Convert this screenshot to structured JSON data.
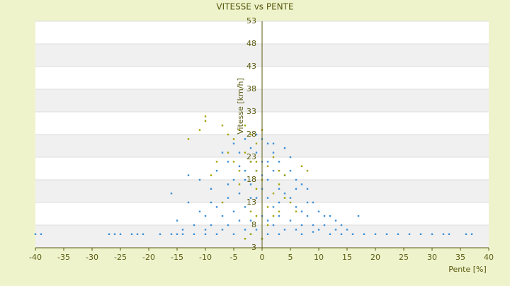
{
  "chart_data": {
    "type": "scatter",
    "title": "VITESSE vs PENTE",
    "x_label": "Pente [%]",
    "y_label": "Vitesse [km/h]",
    "xlim": [
      -40,
      40
    ],
    "xticks": [
      -40,
      -35,
      -30,
      -25,
      -20,
      -15,
      -10,
      -5,
      0,
      5,
      10,
      15,
      20,
      25,
      30,
      35,
      40
    ],
    "ylim": [
      3,
      53
    ],
    "yticks": [
      3,
      8,
      13,
      18,
      23,
      28,
      33,
      38,
      43,
      48,
      53
    ],
    "grid": true,
    "band_color": "#f0f0f0",
    "axis_color": "#5a5a10",
    "background": "#eef3cc",
    "series": [
      {
        "color": "#3b8fd6",
        "x": [
          -40,
          -39,
          -27,
          -26,
          -25,
          -23,
          -22,
          -21,
          -18,
          -16,
          -15,
          -14,
          -12,
          -10,
          -8,
          12,
          14,
          16,
          18,
          20,
          22,
          24,
          26,
          28,
          30,
          32,
          33,
          36,
          37,
          -16,
          -13,
          -11,
          -9,
          -8,
          -7,
          -6,
          -5,
          -4,
          -3,
          -2,
          -1,
          0,
          1,
          2,
          3,
          4,
          5,
          6,
          7,
          8,
          9,
          10,
          12,
          13,
          17,
          -5,
          -3,
          -2,
          -1,
          1,
          2,
          3,
          4,
          5,
          6,
          7,
          8,
          -8,
          -6,
          -4,
          -2,
          0,
          1,
          -10,
          -7,
          -5,
          -3,
          -1,
          0,
          2,
          3,
          5,
          7,
          9,
          11,
          -12,
          -9,
          -6,
          -4,
          -2,
          0,
          1,
          2,
          4,
          6,
          -1,
          -3,
          -7,
          -10,
          10,
          13,
          15,
          -14,
          0,
          1,
          -2,
          3,
          0,
          -1,
          -4,
          5,
          4,
          -6,
          -9,
          8,
          11,
          -11,
          14,
          -15,
          -13,
          3,
          -2,
          6,
          2,
          -3,
          1,
          -5,
          7,
          9
        ],
        "values": [
          6,
          6,
          6,
          6,
          6,
          6,
          6,
          6,
          6,
          6,
          6,
          6,
          6,
          6,
          6,
          6,
          6,
          6,
          6,
          6,
          6,
          6,
          6,
          6,
          6,
          6,
          6,
          6,
          6,
          15,
          19,
          18,
          16,
          20,
          24,
          22,
          26,
          24,
          27,
          25,
          28,
          27,
          26,
          24,
          22,
          25,
          20,
          18,
          17,
          16,
          13,
          11,
          10,
          9,
          10,
          18,
          20,
          22,
          20,
          18,
          20,
          16,
          15,
          14,
          12,
          11,
          10,
          12,
          14,
          15,
          17,
          22,
          22,
          10,
          10,
          11,
          12,
          14,
          16,
          12,
          10,
          9,
          8,
          8,
          8,
          8,
          8,
          8,
          9,
          9,
          10,
          9,
          8,
          7,
          7,
          7,
          7,
          7,
          7,
          7,
          7,
          7,
          7,
          5,
          6,
          6,
          6,
          19,
          24,
          21,
          23,
          19,
          17,
          13,
          13,
          10,
          11,
          8,
          9,
          13,
          13,
          14,
          16,
          26,
          18,
          14,
          6,
          6,
          6.5
        ]
      },
      {
        "color": "#a4a400",
        "x": [
          -10,
          -10,
          -11,
          -7,
          -6,
          -5,
          -4,
          -3,
          -2,
          -1,
          0,
          -3,
          -2,
          -1,
          1,
          2,
          3,
          4,
          -5,
          -4,
          -6,
          -8,
          -9,
          -13,
          2,
          4,
          5,
          3,
          -1,
          0,
          1,
          -2,
          -1,
          6,
          -3,
          -2,
          0,
          1,
          7,
          8,
          -7,
          -4,
          3,
          2,
          -1
        ],
        "values": [
          32,
          31,
          29,
          30,
          28,
          27,
          29,
          30,
          28,
          26,
          29,
          24,
          22,
          20,
          21,
          23,
          20,
          19,
          22,
          20,
          24,
          22,
          19,
          27,
          15,
          14,
          13,
          17,
          16,
          18,
          12,
          11,
          10,
          11,
          5,
          6,
          5,
          8,
          21,
          20,
          13,
          17,
          11,
          10,
          22
        ]
      }
    ]
  }
}
